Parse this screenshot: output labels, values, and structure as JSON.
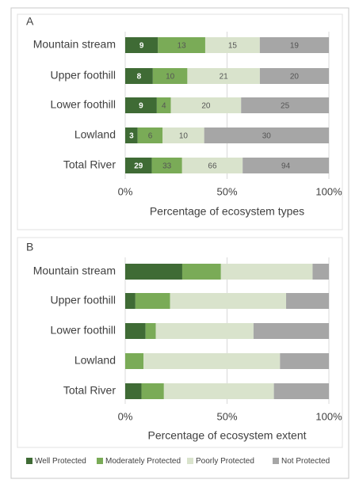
{
  "chart_data": [
    {
      "type": "stacked_percent_bar",
      "panel": "A",
      "x_label": "Percentage of ecosystem types",
      "categories": [
        "Mountain stream",
        "Upper foothill",
        "Lower foothill",
        "Lowland",
        "Total River"
      ],
      "series": [
        {
          "name": "Well Protected",
          "color": "#3f6b35",
          "values": [
            9,
            8,
            9,
            3,
            29
          ]
        },
        {
          "name": "Moderately Protected",
          "color": "#7aab57",
          "values": [
            13,
            10,
            4,
            6,
            33
          ]
        },
        {
          "name": "Poorly Protected",
          "color": "#d9e3cc",
          "values": [
            15,
            21,
            20,
            10,
            66
          ]
        },
        {
          "name": "Not Protected",
          "color": "#a6a6a6",
          "values": [
            19,
            20,
            25,
            30,
            94
          ]
        }
      ],
      "xlim": [
        0,
        100
      ],
      "xticks": [
        {
          "value": 0,
          "label": "0%"
        },
        {
          "value": 50,
          "label": "50%"
        },
        {
          "value": 100,
          "label": "100%"
        }
      ],
      "grid": true
    },
    {
      "type": "stacked_bar",
      "panel": "B",
      "x_label": "Percentage of ecosystem extent",
      "categories": [
        "Mountain stream",
        "Upper foothill",
        "Lower foothill",
        "Lowland",
        "Total River"
      ],
      "series": [
        {
          "color": "#3f6b35",
          "values": [
            28,
            5,
            10,
            0,
            8
          ]
        },
        {
          "color": "#7aab57",
          "values": [
            19,
            17,
            5,
            9,
            11
          ]
        },
        {
          "color": "#d9e3cc",
          "values": [
            45,
            57,
            48,
            67,
            54
          ]
        },
        {
          "color": "#a6a6a6",
          "values": [
            8,
            21,
            37,
            24,
            27
          ]
        }
      ],
      "xlim": [
        0,
        100
      ],
      "xticks": [
        {
          "value": 0,
          "label": "0%"
        },
        {
          "value": 50,
          "label": "50%"
        },
        {
          "value": 100,
          "label": "100%"
        }
      ],
      "grid": true
    }
  ]
}
